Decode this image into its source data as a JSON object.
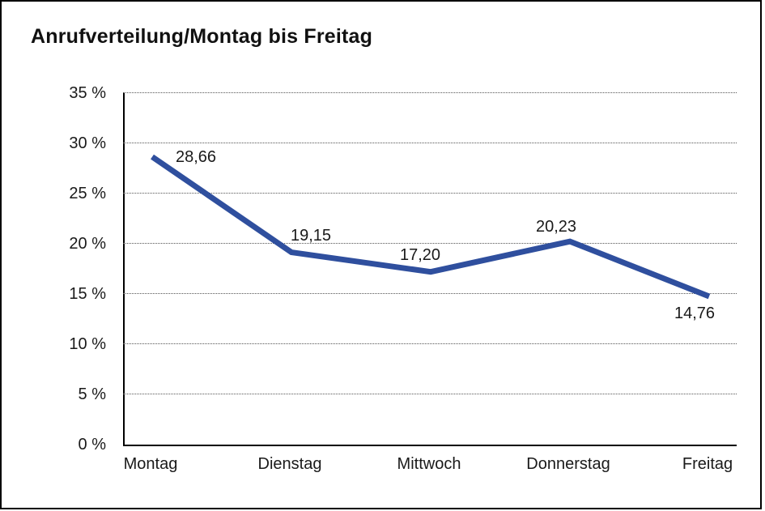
{
  "page": {
    "background_color": "#ffffff",
    "frame_color": "#000000"
  },
  "chart_data": {
    "type": "line",
    "title": "Anrufverteilung/Montag bis Freitag",
    "categories": [
      "Montag",
      "Dienstag",
      "Mittwoch",
      "Donnerstag",
      "Freitag"
    ],
    "values": [
      28.66,
      19.15,
      17.2,
      20.23,
      14.76
    ],
    "point_labels": [
      "28,66",
      "19,15",
      "17,20",
      "20,23",
      "14,76"
    ],
    "point_label_placements": [
      "right",
      "above-right",
      "above-left",
      "above-left",
      "below-left"
    ],
    "xlabel": "",
    "ylabel": "",
    "ylim": [
      0,
      35
    ],
    "ytick_step": 5,
    "ytick_suffix": " %",
    "ytick_labels": [
      "0 %",
      "5 %",
      "10 %",
      "15 %",
      "20 %",
      "25 %",
      "30 %",
      "35 %"
    ],
    "grid": "horizontal-dotted",
    "legend": "none",
    "line_color": "#2F4F9E",
    "line_width": 7,
    "axis_color": "#000000",
    "text_color": "#1a1a1a"
  }
}
